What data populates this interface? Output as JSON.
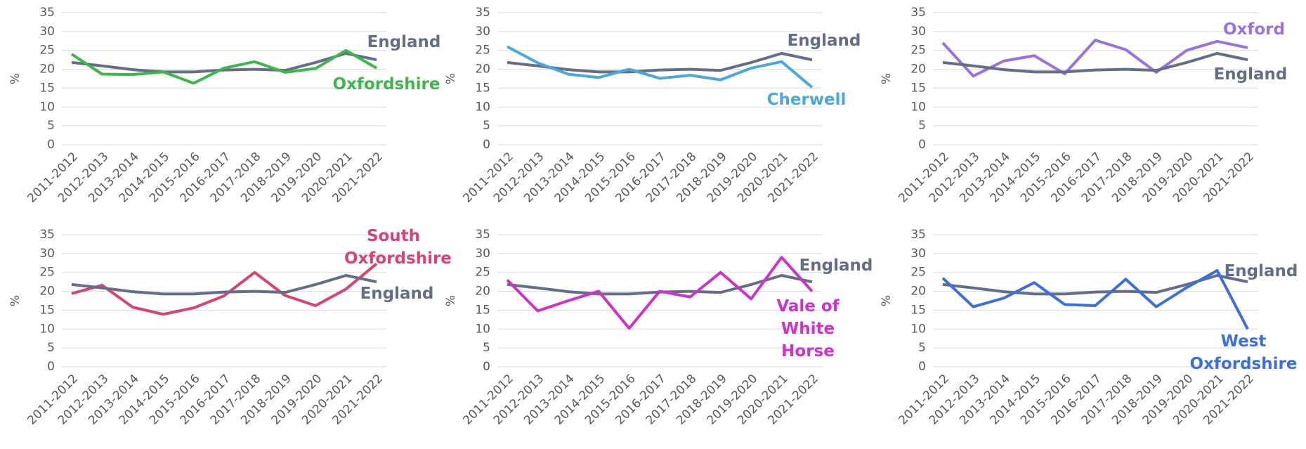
{
  "chart_data": [
    {
      "type": "line",
      "y_label": "%",
      "categories": [
        "2011-2012",
        "2012-2013",
        "2013-2014",
        "2014-2015",
        "2015-2016",
        "2016-2017",
        "2017-2018",
        "2018-2019",
        "2019-2020",
        "2020-2021",
        "2021-2022"
      ],
      "series": [
        {
          "name": "England",
          "color": "#646e88",
          "values": [
            21.8,
            20.9,
            19.9,
            19.3,
            19.3,
            19.8,
            20.0,
            19.7,
            21.8,
            24.2,
            22.5
          ]
        },
        {
          "name": "Oxfordshire",
          "color": "#3cb84a",
          "values": [
            24.0,
            18.7,
            18.6,
            19.3,
            16.3,
            20.3,
            22.0,
            19.2,
            20.2,
            25.0,
            20.3
          ]
        }
      ],
      "ylim": [
        0,
        35
      ],
      "yticks": [
        0,
        5,
        10,
        15,
        20,
        25,
        30,
        35
      ],
      "grid": true
    },
    {
      "type": "line",
      "y_label": "%",
      "categories": [
        "2011-2012",
        "2012-2013",
        "2013-2014",
        "2014-2015",
        "2015-2016",
        "2016-2017",
        "2017-2018",
        "2018-2019",
        "2019-2020",
        "2020-2021",
        "2021-2022"
      ],
      "series": [
        {
          "name": "England",
          "color": "#646e88",
          "values": [
            21.8,
            20.9,
            19.9,
            19.3,
            19.3,
            19.8,
            20.0,
            19.7,
            21.8,
            24.2,
            22.5
          ]
        },
        {
          "name": "Cherwell",
          "color": "#4aa8dc",
          "values": [
            26.0,
            21.7,
            18.7,
            17.8,
            20.0,
            17.6,
            18.4,
            17.2,
            20.3,
            22.0,
            15.2
          ]
        }
      ],
      "ylim": [
        0,
        35
      ],
      "yticks": [
        0,
        5,
        10,
        15,
        20,
        25,
        30,
        35
      ],
      "grid": true
    },
    {
      "type": "line",
      "y_label": "%",
      "categories": [
        "2011-2012",
        "2012-2013",
        "2013-2014",
        "2014-2015",
        "2015-2016",
        "2016-2017",
        "2017-2018",
        "2018-2019",
        "2019-2020",
        "2020-2021",
        "2021-2022"
      ],
      "series": [
        {
          "name": "Oxford",
          "color": "#9a72e0",
          "values": [
            27.0,
            18.2,
            22.2,
            23.6,
            18.8,
            27.7,
            25.2,
            19.2,
            25.0,
            27.4,
            25.7
          ]
        },
        {
          "name": "England",
          "color": "#646e88",
          "values": [
            21.8,
            20.9,
            19.9,
            19.3,
            19.3,
            19.8,
            20.0,
            19.7,
            21.8,
            24.2,
            22.5
          ]
        }
      ],
      "ylim": [
        0,
        35
      ],
      "yticks": [
        0,
        5,
        10,
        15,
        20,
        25,
        30,
        35
      ],
      "grid": true
    },
    {
      "type": "line",
      "y_label": "%",
      "categories": [
        "2011-2012",
        "2012-2013",
        "2013-2014",
        "2014-2015",
        "2015-2016",
        "2016-2017",
        "2017-2018",
        "2018-2019",
        "2019-2020",
        "2020-2021",
        "2021-2022"
      ],
      "series": [
        {
          "name": "South Oxfordshire",
          "color": "#d9436e",
          "values": [
            19.4,
            21.6,
            15.8,
            13.9,
            15.6,
            18.8,
            25.0,
            18.9,
            16.2,
            20.6,
            27.3
          ]
        },
        {
          "name": "England",
          "color": "#646e88",
          "values": [
            21.8,
            20.9,
            19.9,
            19.3,
            19.3,
            19.8,
            20.0,
            19.7,
            21.8,
            24.2,
            22.5
          ]
        }
      ],
      "ylim": [
        0,
        35
      ],
      "yticks": [
        0,
        5,
        10,
        15,
        20,
        25,
        30,
        35
      ],
      "grid": true
    },
    {
      "type": "line",
      "y_label": "%",
      "categories": [
        "2011-2012",
        "2012-2013",
        "2013-2014",
        "2014-2015",
        "2015-2016",
        "2016-2017",
        "2017-2018",
        "2018-2019",
        "2019-2020",
        "2020-2021",
        "2021-2022"
      ],
      "series": [
        {
          "name": "England",
          "color": "#646e88",
          "values": [
            21.8,
            20.9,
            19.9,
            19.3,
            19.3,
            19.8,
            20.0,
            19.7,
            21.8,
            24.2,
            22.5
          ]
        },
        {
          "name": "Vale of White Horse",
          "color": "#cc33cc",
          "values": [
            23.0,
            14.8,
            17.5,
            20.0,
            10.2,
            20.0,
            18.5,
            25.0,
            18.0,
            29.0,
            20.0
          ]
        }
      ],
      "ylim": [
        0,
        35
      ],
      "yticks": [
        0,
        5,
        10,
        15,
        20,
        25,
        30,
        35
      ],
      "grid": true
    },
    {
      "type": "line",
      "y_label": "%",
      "categories": [
        "2011-2012",
        "2012-2013",
        "2013-2014",
        "2014-2015",
        "2015-2016",
        "2016-2017",
        "2017-2018",
        "2018-2019",
        "2019-2020",
        "2020-2021",
        "2021-2022"
      ],
      "series": [
        {
          "name": "England",
          "color": "#646e88",
          "values": [
            21.8,
            20.9,
            19.9,
            19.3,
            19.3,
            19.8,
            20.0,
            19.7,
            21.8,
            24.2,
            22.5
          ]
        },
        {
          "name": "West Oxfordshire",
          "color": "#3d6fdc",
          "values": [
            23.5,
            15.9,
            18.2,
            22.3,
            16.5,
            16.2,
            23.2,
            15.9,
            21.0,
            25.5,
            10.0
          ]
        }
      ],
      "ylim": [
        0,
        35
      ],
      "yticks": [
        0,
        5,
        10,
        15,
        20,
        25,
        30,
        35
      ],
      "grid": true
    }
  ]
}
